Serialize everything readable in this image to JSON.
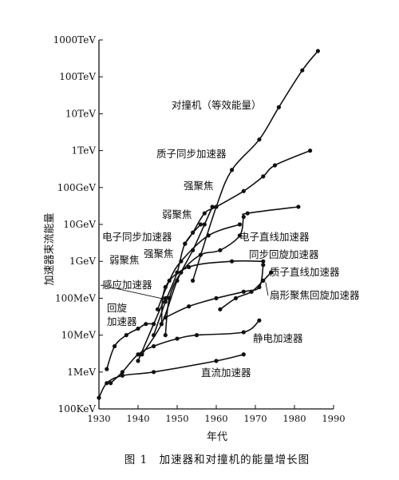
{
  "chart_data": {
    "type": "line",
    "caption": "图 1　加速器和对撞机的能量增长图",
    "xlabel": "年代",
    "ylabel": "加速器束流能量",
    "xlim": [
      1930,
      1990
    ],
    "x_ticks": [
      "1930",
      "1940",
      "1950",
      "1960",
      "1970",
      "1980",
      "1990"
    ],
    "y_scale": "log",
    "ylim_eV": [
      100000,
      1000000000000000
    ],
    "y_ticks": [
      "100KeV",
      "1MeV",
      "10MeV",
      "100MeV",
      "1GeV",
      "10GeV",
      "100GeV",
      "1TeV",
      "10TeV",
      "100TeV",
      "1000TeV"
    ],
    "series": [
      {
        "name": "对撞机（等效能量）",
        "points": [
          [
            1954,
            300000000
          ],
          [
            1960,
            30000000000
          ],
          [
            1964,
            300000000000
          ],
          [
            1971,
            2000000000000
          ],
          [
            1976,
            15000000000000
          ],
          [
            1982,
            150000000000000
          ],
          [
            1986,
            500000000000000
          ]
        ]
      },
      {
        "name": "质子同步加速器",
        "points": [
          [
            1952,
            3000000000
          ],
          [
            1954,
            6000000000
          ],
          [
            1957,
            20000000000
          ],
          [
            1960,
            30000000000
          ],
          [
            1967,
            80000000000
          ],
          [
            1972,
            200000000000
          ],
          [
            1975,
            400000000000
          ],
          [
            1984,
            1000000000000
          ]
        ]
      },
      {
        "name": "强聚焦",
        "points": [
          [
            1941,
            3000000
          ],
          [
            1946,
            20000000
          ],
          [
            1950,
            300000000
          ],
          [
            1954,
            2000000000
          ],
          [
            1957,
            10000000000
          ],
          [
            1959,
            30000000000
          ]
        ]
      },
      {
        "name": "弱聚焦",
        "points": [
          [
            1944,
            10000000
          ],
          [
            1947,
            80000000
          ],
          [
            1950,
            500000000
          ],
          [
            1952,
            3000000000
          ],
          [
            1956,
            10000000000
          ]
        ]
      },
      {
        "name": "电子同步加速器",
        "points": [
          [
            1945,
            50000000
          ],
          [
            1948,
            300000000
          ],
          [
            1951,
            1000000000
          ],
          [
            1958,
            5000000000
          ],
          [
            1966,
            10000000000
          ]
        ]
      },
      {
        "name": "电子直线加速器",
        "points": [
          [
            1947,
            10000000
          ],
          [
            1948,
            100000000
          ],
          [
            1951,
            500000000
          ],
          [
            1956,
            1500000000
          ],
          [
            1961,
            2000000000
          ],
          [
            1966,
            5000000000
          ],
          [
            1967,
            16000000000
          ],
          [
            1968,
            20000000000
          ],
          [
            1981,
            30000000000
          ]
        ]
      },
      {
        "name": "同步回旋加速器",
        "points": [
          [
            1946,
            20000000
          ],
          [
            1947,
            200000000
          ],
          [
            1953,
            700000000
          ],
          [
            1964,
            1000000000
          ],
          [
            1972,
            1000000000
          ]
        ]
      },
      {
        "name": "质子直线加速器",
        "points": [
          [
            1947,
            30000000
          ],
          [
            1953,
            60000000
          ],
          [
            1960,
            100000000
          ],
          [
            1967,
            150000000
          ],
          [
            1971,
            200000000
          ],
          [
            1972,
            800000000
          ]
        ]
      },
      {
        "name": "扇形聚焦回旋加速器",
        "points": [
          [
            1961,
            50000000
          ],
          [
            1965,
            100000000
          ],
          [
            1969,
            150000000
          ],
          [
            1972,
            300000000
          ],
          [
            1974,
            500000000
          ]
        ]
      },
      {
        "name": "感应加速器",
        "points": [
          [
            1940,
            2000000
          ],
          [
            1944,
            20000000
          ],
          [
            1947,
            100000000
          ],
          [
            1948,
            100000000
          ]
        ]
      },
      {
        "name": "回旋加速器",
        "points": [
          [
            1932,
            1200000
          ],
          [
            1934,
            5000000
          ],
          [
            1937,
            10000000
          ],
          [
            1940,
            15000000
          ],
          [
            1942,
            20000000
          ],
          [
            1944,
            20000000
          ]
        ]
      },
      {
        "name": "静电加速器",
        "points": [
          [
            1933,
            500000
          ],
          [
            1936,
            1000000
          ],
          [
            1940,
            3000000
          ],
          [
            1944,
            5000000
          ],
          [
            1950,
            8000000
          ],
          [
            1955,
            10000000
          ],
          [
            1967,
            12000000
          ],
          [
            1971,
            25000000
          ]
        ]
      },
      {
        "name": "直流加速器",
        "points": [
          [
            1930,
            200000
          ],
          [
            1932,
            500000
          ],
          [
            1936,
            800000
          ],
          [
            1944,
            1000000
          ],
          [
            1960,
            2000000
          ],
          [
            1967,
            3000000
          ]
        ]
      }
    ]
  }
}
